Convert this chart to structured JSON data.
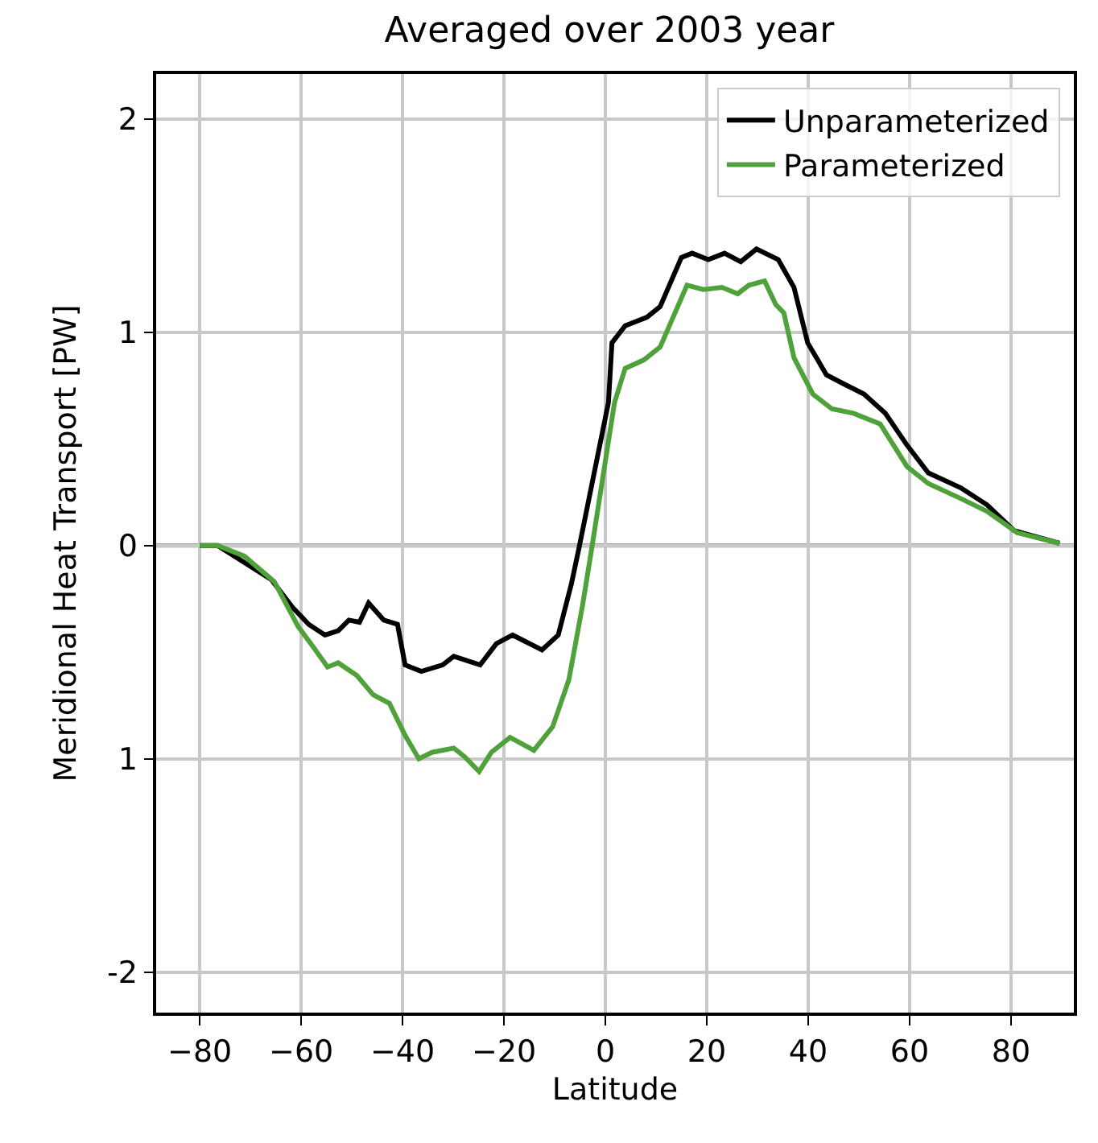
{
  "chart_data": {
    "type": "line",
    "title": "Averaged over 2003 year",
    "xlabel": "Latitude",
    "ylabel": "Meridional Heat Transport [PW]",
    "xlim": [
      -88.6,
      92.4
    ],
    "xticks": [
      -80,
      -60,
      -40,
      -20,
      0,
      20,
      40,
      60,
      80
    ],
    "ylim": [
      -2.19,
      2.21
    ],
    "yticks": [
      {
        "value": -2,
        "label": "-2"
      },
      {
        "value": -1,
        "label": "1"
      },
      0,
      1,
      2
    ],
    "grid": true,
    "legend": "top right",
    "marker": "none",
    "line_style": "solid",
    "ref_lines": [
      {
        "axis": "y",
        "value": 0,
        "color": "#808080"
      }
    ],
    "series": [
      {
        "name": "Unparameterized",
        "color": "#000000",
        "x": [
          -80,
          -76.5,
          -65.9,
          -61.7,
          -58.5,
          -55.3,
          -52.7,
          -50.6,
          -48.5,
          -46.7,
          -43.7,
          -41.0,
          -39.5,
          -36.3,
          -32.1,
          -29.9,
          -24.7,
          -21.5,
          -18.3,
          -12.5,
          -9.3,
          -6.7,
          -5.1,
          0.6,
          1.3,
          3.9,
          8.2,
          10.8,
          15.0,
          17.1,
          20.3,
          23.5,
          26.7,
          29.8,
          34.1,
          37.2,
          39.9,
          43.6,
          46.8,
          51.0,
          55.2,
          59.5,
          63.7,
          70.1,
          75.3,
          80.6,
          89.6
        ],
        "values": [
          0,
          0,
          -0.16,
          -0.29,
          -0.37,
          -0.42,
          -0.4,
          -0.35,
          -0.36,
          -0.27,
          -0.35,
          -0.37,
          -0.56,
          -0.59,
          -0.56,
          -0.52,
          -0.56,
          -0.46,
          -0.42,
          -0.49,
          -0.42,
          -0.18,
          0.0,
          0.67,
          0.95,
          1.03,
          1.07,
          1.12,
          1.35,
          1.37,
          1.34,
          1.37,
          1.33,
          1.39,
          1.34,
          1.21,
          0.95,
          0.8,
          0.76,
          0.71,
          0.62,
          0.47,
          0.34,
          0.27,
          0.19,
          0.07,
          0.01
        ]
      },
      {
        "name": "Parameterized",
        "color": "#4fa13a",
        "x": [
          -80,
          -76.5,
          -71.2,
          -65.3,
          -60.6,
          -57.5,
          -54.8,
          -52.7,
          -49.0,
          -45.8,
          -42.6,
          -39.5,
          -36.8,
          -34.2,
          -29.9,
          -27.8,
          -24.9,
          -22.5,
          -18.8,
          -14.1,
          -10.4,
          -7.2,
          -4.5,
          -2.6,
          1.8,
          3.9,
          7.6,
          10.8,
          16.1,
          19.3,
          23.0,
          26.1,
          28.3,
          31.4,
          33.6,
          35.2,
          37.2,
          40.9,
          44.7,
          48.9,
          54.2,
          59.5,
          63.7,
          70.1,
          75.3,
          81.2,
          89.6
        ],
        "values": [
          0,
          0,
          -0.05,
          -0.17,
          -0.38,
          -0.48,
          -0.57,
          -0.55,
          -0.61,
          -0.7,
          -0.74,
          -0.89,
          -1.0,
          -0.97,
          -0.95,
          -0.99,
          -1.06,
          -0.97,
          -0.9,
          -0.96,
          -0.85,
          -0.63,
          -0.28,
          0.0,
          0.67,
          0.83,
          0.87,
          0.93,
          1.22,
          1.2,
          1.21,
          1.18,
          1.22,
          1.24,
          1.13,
          1.09,
          0.88,
          0.71,
          0.64,
          0.62,
          0.57,
          0.37,
          0.29,
          0.22,
          0.16,
          0.06,
          0.01
        ]
      }
    ]
  }
}
